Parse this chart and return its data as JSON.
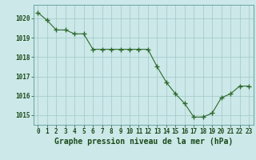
{
  "x": [
    0,
    1,
    2,
    3,
    4,
    5,
    6,
    7,
    8,
    9,
    10,
    11,
    12,
    13,
    14,
    15,
    16,
    17,
    18,
    19,
    20,
    21,
    22,
    23
  ],
  "y": [
    1020.3,
    1019.9,
    1019.4,
    1019.4,
    1019.2,
    1019.2,
    1018.4,
    1018.4,
    1018.4,
    1018.4,
    1018.4,
    1018.4,
    1018.4,
    1017.5,
    1016.7,
    1016.1,
    1015.6,
    1014.9,
    1014.9,
    1015.1,
    1015.9,
    1016.1,
    1016.5,
    1016.5
  ],
  "line_color": "#2d6a2d",
  "marker_color": "#2d6a2d",
  "bg_color": "#cce8e8",
  "grid_color": "#a0c8c8",
  "xlabel": "Graphe pression niveau de la mer (hPa)",
  "xlabel_color": "#1a4a1a",
  "tick_color": "#1a4a1a",
  "ylim": [
    1014.5,
    1020.7
  ],
  "yticks": [
    1015,
    1016,
    1017,
    1018,
    1019,
    1020
  ],
  "xticks": [
    0,
    1,
    2,
    3,
    4,
    5,
    6,
    7,
    8,
    9,
    10,
    11,
    12,
    13,
    14,
    15,
    16,
    17,
    18,
    19,
    20,
    21,
    22,
    23
  ],
  "tick_fontsize": 5.5,
  "xlabel_fontsize": 7.0,
  "xlabel_fontweight": "bold"
}
